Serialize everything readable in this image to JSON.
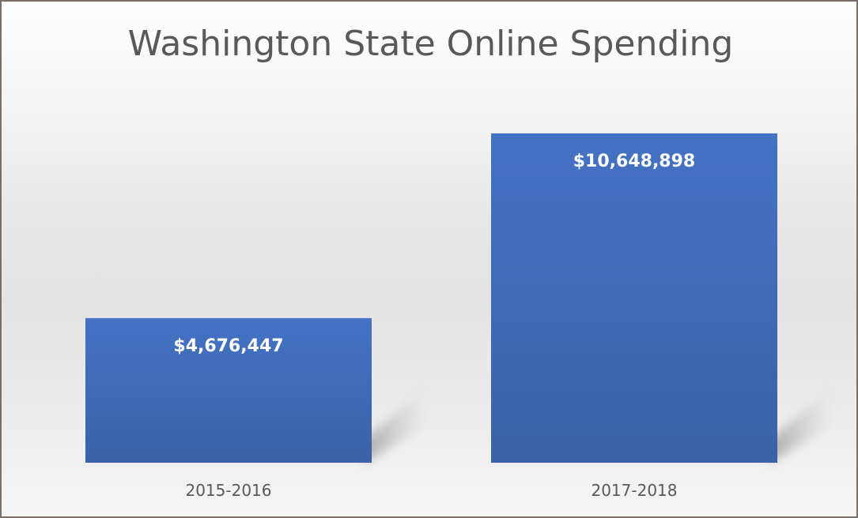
{
  "chart_data": {
    "type": "bar",
    "title": "Washington State Online Spending",
    "categories": [
      "2015-2016",
      "2017-2018"
    ],
    "values": [
      4676447,
      10648898
    ],
    "data_labels": [
      "$4,676,447",
      "$10,648,898"
    ],
    "xlabel": "",
    "ylabel": "",
    "ylim": [
      0,
      12000000
    ],
    "grid": false,
    "legend": "none",
    "bar_color": "#4472c4"
  }
}
